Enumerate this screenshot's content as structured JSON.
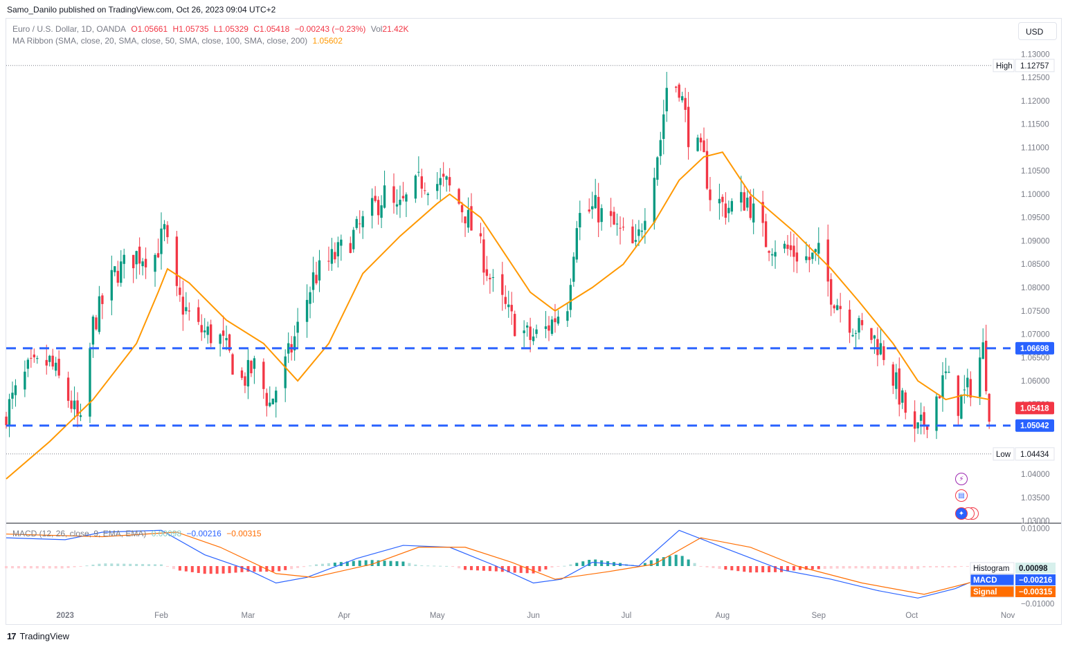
{
  "header": {
    "publisher": "Samo_Danilo published on TradingView.com, Oct 26, 2023 09:04 UTC+2"
  },
  "legend": {
    "symbol": "Euro / U.S. Dollar, 1D, OANDA",
    "open": "O1.05661",
    "high": "H1.05735",
    "low": "L1.05329",
    "close": "C1.05418",
    "change": "−0.00243 (−0.23%)",
    "volume_label": "Vol",
    "volume": "21.42K",
    "ma_ribbon": "MA Ribbon (SMA, close, 20, SMA, close, 50, SMA, close, 100, SMA, close, 200)",
    "ma_value": "1.05602",
    "macd": "MACD (12, 26, close, 9, EMA, EMA)",
    "macd_hist_value": "0.00098",
    "macd_value": "−0.00216",
    "signal_value": "−0.00315"
  },
  "currency_button": "USD",
  "footer": {
    "brand": "TradingView"
  },
  "colors": {
    "up": "#089981",
    "down": "#f23645",
    "ma": "#ff9800",
    "macd": "#2962ff",
    "signal": "#ff6d00",
    "level": "#2962ff"
  },
  "chart_data": [
    {
      "type": "candlestick",
      "title": "Euro / U.S. Dollar, 1D, OANDA",
      "y_axis_ticks": [
        "1.13000",
        "1.12500",
        "1.12000",
        "1.11500",
        "1.11000",
        "1.10500",
        "1.10000",
        "1.09500",
        "1.09000",
        "1.08500",
        "1.08000",
        "1.07500",
        "1.07000",
        "1.06500",
        "1.06000",
        "1.05500",
        "1.05000",
        "1.04500",
        "1.04000",
        "1.03500",
        "1.03000"
      ],
      "ylim": [
        1.0295,
        1.1305
      ],
      "x_axis_labels": [
        "2023",
        "Feb",
        "Mar",
        "Apr",
        "May",
        "Jun",
        "Jul",
        "Aug",
        "Sep",
        "Oct",
        "Nov"
      ],
      "x_range": [
        "2022-12-13",
        "2023-11-03"
      ],
      "x_ticks": [
        "2023-01-01",
        "2023-02-01",
        "2023-03-01",
        "2023-04-01",
        "2023-05-01",
        "2023-06-01",
        "2023-07-01",
        "2023-08-01",
        "2023-09-01",
        "2023-10-01",
        "2023-11-01"
      ],
      "close_path": [
        [
          "2022-12-13",
          1.0535
        ],
        [
          "2022-12-20",
          1.062
        ],
        [
          "2022-12-27",
          1.064
        ],
        [
          "2023-01-03",
          1.055
        ],
        [
          "2023-01-06",
          1.05
        ],
        [
          "2023-01-10",
          1.072
        ],
        [
          "2023-01-17",
          1.083
        ],
        [
          "2023-01-24",
          1.087
        ],
        [
          "2023-01-30",
          1.087
        ],
        [
          "2023-02-02",
          1.092
        ],
        [
          "2023-02-06",
          1.078
        ],
        [
          "2023-02-13",
          1.071
        ],
        [
          "2023-02-20",
          1.069
        ],
        [
          "2023-02-27",
          1.06
        ],
        [
          "2023-03-03",
          1.063
        ],
        [
          "2023-03-08",
          1.055
        ],
        [
          "2023-03-15",
          1.067
        ],
        [
          "2023-03-22",
          1.082
        ],
        [
          "2023-03-31",
          1.088
        ],
        [
          "2023-04-05",
          1.092
        ],
        [
          "2023-04-14",
          1.1
        ],
        [
          "2023-04-18",
          1.096
        ],
        [
          "2023-04-26",
          1.103
        ],
        [
          "2023-05-04",
          1.102
        ],
        [
          "2023-05-10",
          1.096
        ],
        [
          "2023-05-15",
          1.088
        ],
        [
          "2023-05-19",
          1.08
        ],
        [
          "2023-05-25",
          1.073
        ],
        [
          "2023-05-31",
          1.069
        ],
        [
          "2023-06-05",
          1.071
        ],
        [
          "2023-06-12",
          1.077
        ],
        [
          "2023-06-15",
          1.095
        ],
        [
          "2023-06-21",
          1.097
        ],
        [
          "2023-06-27",
          1.093
        ],
        [
          "2023-07-04",
          1.088
        ],
        [
          "2023-07-07",
          1.097
        ],
        [
          "2023-07-12",
          1.112
        ],
        [
          "2023-07-14",
          1.123
        ],
        [
          "2023-07-18",
          1.1235
        ],
        [
          "2023-07-21",
          1.113
        ],
        [
          "2023-07-26",
          1.107
        ],
        [
          "2023-07-28",
          1.1
        ],
        [
          "2023-08-02",
          1.097
        ],
        [
          "2023-08-09",
          1.099
        ],
        [
          "2023-08-15",
          1.09
        ],
        [
          "2023-08-22",
          1.088
        ],
        [
          "2023-08-29",
          1.086
        ],
        [
          "2023-09-01",
          1.087
        ],
        [
          "2023-09-05",
          1.079
        ],
        [
          "2023-09-12",
          1.072
        ],
        [
          "2023-09-19",
          1.069
        ],
        [
          "2023-09-22",
          1.066
        ],
        [
          "2023-09-26",
          1.059
        ],
        [
          "2023-10-02",
          1.048
        ],
        [
          "2023-10-05",
          1.051
        ],
        [
          "2023-10-12",
          1.061
        ],
        [
          "2023-10-16",
          1.055
        ],
        [
          "2023-10-20",
          1.059
        ],
        [
          "2023-10-24",
          1.0669
        ],
        [
          "2023-10-26",
          1.0542
        ]
      ],
      "ma_20_path": [
        [
          "2022-12-13",
          1.039
        ],
        [
          "2022-12-27",
          1.047
        ],
        [
          "2023-01-10",
          1.056
        ],
        [
          "2023-01-24",
          1.068
        ],
        [
          "2023-01-31",
          1.079
        ],
        [
          "2023-02-03",
          1.084
        ],
        [
          "2023-02-10",
          1.081
        ],
        [
          "2023-02-22",
          1.073
        ],
        [
          "2023-03-06",
          1.068
        ],
        [
          "2023-03-17",
          1.06
        ],
        [
          "2023-03-27",
          1.068
        ],
        [
          "2023-04-07",
          1.083
        ],
        [
          "2023-04-19",
          1.091
        ],
        [
          "2023-05-01",
          1.098
        ],
        [
          "2023-05-05",
          1.1
        ],
        [
          "2023-05-15",
          1.095
        ],
        [
          "2023-05-24",
          1.086
        ],
        [
          "2023-05-31",
          1.079
        ],
        [
          "2023-06-08",
          1.075
        ],
        [
          "2023-06-20",
          1.08
        ],
        [
          "2023-06-30",
          1.085
        ],
        [
          "2023-07-10",
          1.094
        ],
        [
          "2023-07-18",
          1.103
        ],
        [
          "2023-07-26",
          1.108
        ],
        [
          "2023-08-01",
          1.109
        ],
        [
          "2023-08-10",
          1.1
        ],
        [
          "2023-08-24",
          1.092
        ],
        [
          "2023-09-05",
          1.084
        ],
        [
          "2023-09-14",
          1.077
        ],
        [
          "2023-09-25",
          1.068
        ],
        [
          "2023-10-03",
          1.06
        ],
        [
          "2023-10-12",
          1.056
        ],
        [
          "2023-10-18",
          1.057
        ],
        [
          "2023-10-26",
          1.056
        ]
      ],
      "horizontal_levels": [
        {
          "label": "High",
          "value": "1.12757",
          "style": "dotted"
        },
        {
          "label": "",
          "value": "1.06698",
          "style": "dashed"
        },
        {
          "label": "",
          "value": "1.05042",
          "style": "dashed"
        },
        {
          "label": "Low",
          "value": "1.04434",
          "style": "dotted"
        }
      ],
      "last_price": "1.05418"
    },
    {
      "type": "line+histogram",
      "title": "MACD (12, 26, close, 9, EMA, EMA)",
      "y_axis_ticks": [
        "0.01000",
        "0.00000",
        "−0.01000"
      ],
      "ylim": [
        -0.0112,
        0.0112
      ],
      "macd_path": [
        [
          "2022-12-13",
          0.0075
        ],
        [
          "2023-01-01",
          0.007
        ],
        [
          "2023-01-13",
          0.009
        ],
        [
          "2023-02-01",
          0.0095
        ],
        [
          "2023-02-15",
          0.003
        ],
        [
          "2023-03-01",
          -0.001
        ],
        [
          "2023-03-10",
          -0.0045
        ],
        [
          "2023-03-20",
          -0.003
        ],
        [
          "2023-04-05",
          0.002
        ],
        [
          "2023-04-20",
          0.0055
        ],
        [
          "2023-05-05",
          0.005
        ],
        [
          "2023-05-20",
          0.0
        ],
        [
          "2023-06-01",
          -0.0045
        ],
        [
          "2023-06-10",
          -0.0035
        ],
        [
          "2023-06-20",
          0.001
        ],
        [
          "2023-07-05",
          0.0
        ],
        [
          "2023-07-18",
          0.0095
        ],
        [
          "2023-08-01",
          0.005
        ],
        [
          "2023-08-20",
          -0.001
        ],
        [
          "2023-09-05",
          -0.0035
        ],
        [
          "2023-09-20",
          -0.0065
        ],
        [
          "2023-10-03",
          -0.0085
        ],
        [
          "2023-10-15",
          -0.006
        ],
        [
          "2023-10-26",
          -0.0022
        ]
      ],
      "signal_path": [
        [
          "2022-12-13",
          0.0085
        ],
        [
          "2023-01-13",
          0.0078
        ],
        [
          "2023-02-06",
          0.009
        ],
        [
          "2023-02-20",
          0.005
        ],
        [
          "2023-03-10",
          -0.002
        ],
        [
          "2023-03-22",
          -0.003
        ],
        [
          "2023-04-10",
          0.0005
        ],
        [
          "2023-04-25",
          0.005
        ],
        [
          "2023-05-10",
          0.005
        ],
        [
          "2023-05-25",
          0.001
        ],
        [
          "2023-06-08",
          -0.0035
        ],
        [
          "2023-06-25",
          -0.0015
        ],
        [
          "2023-07-10",
          0.0005
        ],
        [
          "2023-07-25",
          0.0075
        ],
        [
          "2023-08-10",
          0.005
        ],
        [
          "2023-08-25",
          0.0
        ],
        [
          "2023-09-15",
          -0.0045
        ],
        [
          "2023-10-05",
          -0.0075
        ],
        [
          "2023-10-26",
          -0.0031
        ]
      ],
      "histogram_label": "Histogram",
      "macd_label": "MACD",
      "signal_label": "Signal"
    }
  ]
}
